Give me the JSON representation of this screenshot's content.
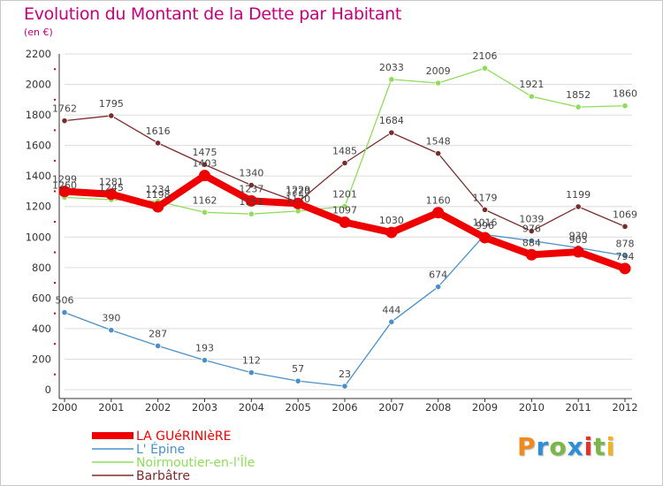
{
  "title": "Evolution du Montant de la Dette par Habitant",
  "subtitle": "(en €)",
  "brand": {
    "text": "Proxiti",
    "letter_colors": [
      "#f08a1e",
      "#2e8fd6",
      "#7ab648",
      "#2e8fd6",
      "#e7302a",
      "#7ab648",
      "#f0b41e"
    ]
  },
  "chart_data": {
    "type": "line",
    "categories": [
      "2000",
      "2001",
      "2002",
      "2003",
      "2004",
      "2005",
      "2006",
      "2007",
      "2008",
      "2009",
      "2010",
      "2011",
      "2012"
    ],
    "ylim": [
      0,
      2200
    ],
    "yticks": [
      0,
      200,
      400,
      600,
      800,
      1000,
      1200,
      1400,
      1600,
      1800,
      2000,
      2200
    ],
    "grid": "horizontal",
    "legend_position": "bottom-left",
    "series": [
      {
        "name": "Barbâtre",
        "color": "#7a2b2b",
        "values": [
          1762,
          1795,
          1616,
          1475,
          1340,
          1229,
          1485,
          1684,
          1548,
          1179,
          1039,
          1199,
          1069
        ]
      },
      {
        "name": "Noirmoutier-en-l'Île",
        "color": "#8fdc5a",
        "values": [
          1260,
          1245,
          1234,
          1162,
          1151,
          1170,
          1201,
          2033,
          2009,
          2106,
          1921,
          1852,
          1860
        ]
      },
      {
        "name": "L' Épine",
        "color": "#4a90c8",
        "values": [
          506,
          390,
          287,
          193,
          112,
          57,
          23,
          444,
          674,
          1016,
          976,
          930,
          878
        ]
      },
      {
        "name": "LA GUéRINIèRE",
        "color": "#ee0000",
        "values": [
          1299,
          1281,
          1198,
          1403,
          1237,
          1220,
          1097,
          1030,
          1160,
          996,
          884,
          903,
          794
        ]
      }
    ]
  }
}
